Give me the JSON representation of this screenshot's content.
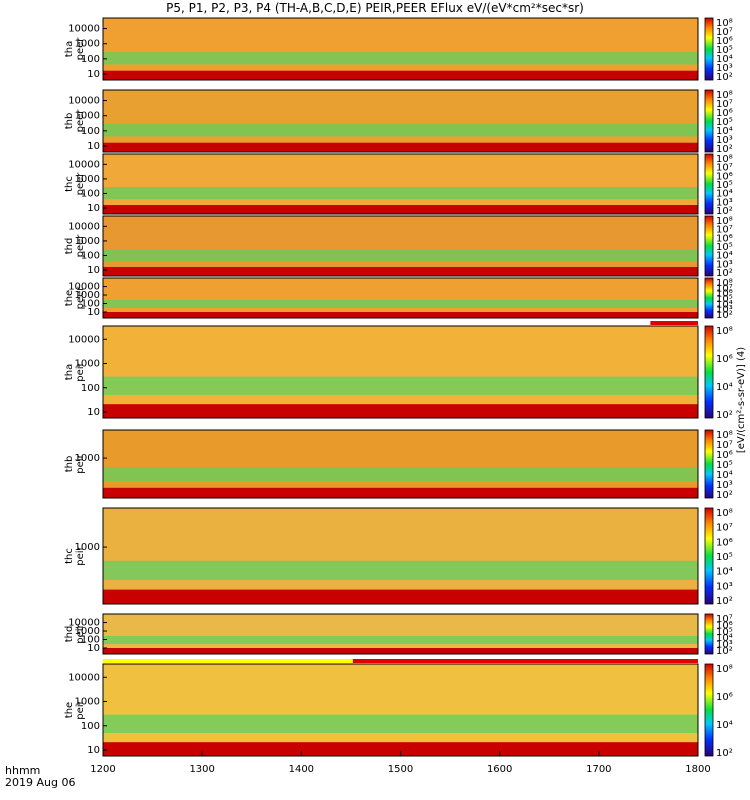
{
  "title": "P5, P1, P2, P3, P4 (TH-A,B,C,D,E) PEIR,PEER EFlux eV/(eV*cm²*sec*sr)",
  "x_axis": {
    "ticks": [
      "1200",
      "1300",
      "1400",
      "1500",
      "1600",
      "1700",
      "1800"
    ]
  },
  "footer": {
    "line1": "hhmm",
    "line2": "2019 Aug 06"
  },
  "colorbar": {
    "label": "[eV/(cm²-s-sr-eV)] (4)",
    "ticks": [
      "10⁸",
      "10⁷",
      "10⁶",
      "10⁵",
      "10⁴",
      "10³",
      "10²"
    ]
  },
  "chart_data": [
    {
      "type": "heatmap",
      "panel": "tha-peer",
      "ylabel": "tha\npeer",
      "yscale": "log",
      "yticks": [
        "10000",
        "1000",
        "100",
        "10"
      ],
      "xticks": [
        "1200",
        "1300",
        "1400",
        "1500",
        "1600",
        "1700",
        "1800"
      ],
      "ticks_lg": [
        4,
        3,
        2,
        1
      ],
      "cbticks": [
        "10⁸",
        "10⁷",
        "10⁶",
        "10⁵",
        "10⁴",
        "10³",
        "10²"
      ],
      "bar": []
    },
    {
      "type": "heatmap",
      "panel": "thb-peer",
      "ylabel": "thb\npeer",
      "yscale": "log",
      "yticks": [
        "10000",
        "1000",
        "100",
        "10"
      ],
      "xticks": [
        "1200",
        "1300",
        "1400",
        "1500",
        "1600",
        "1700",
        "1800"
      ],
      "ticks_lg": [
        4,
        3,
        2,
        1
      ],
      "cbticks": [
        "10⁸",
        "10⁷",
        "10⁶",
        "10⁵",
        "10⁴",
        "10³",
        "10²"
      ],
      "bar": []
    },
    {
      "type": "heatmap",
      "panel": "thc-peer",
      "ylabel": "thc\npeer",
      "yscale": "log",
      "yticks": [
        "10000",
        "1000",
        "100",
        "10"
      ],
      "xticks": [
        "1200",
        "1300",
        "1400",
        "1500",
        "1600",
        "1700",
        "1800"
      ],
      "ticks_lg": [
        4,
        3,
        2,
        1
      ],
      "cbticks": [
        "10⁸",
        "10⁷",
        "10⁶",
        "10⁵",
        "10⁴",
        "10³",
        "10²"
      ],
      "bar": []
    },
    {
      "type": "heatmap",
      "panel": "thd-peer",
      "ylabel": "thd\npeer",
      "yscale": "log",
      "yticks": [
        "10000",
        "1000",
        "100",
        "10"
      ],
      "xticks": [
        "1200",
        "1300",
        "1400",
        "1500",
        "1600",
        "1700",
        "1800"
      ],
      "ticks_lg": [
        4,
        3,
        2,
        1
      ],
      "cbticks": [
        "10⁸",
        "10⁷",
        "10⁶",
        "10⁵",
        "10⁴",
        "10³",
        "10²"
      ],
      "bar": []
    },
    {
      "type": "heatmap",
      "panel": "the-peer",
      "ylabel": "the\npeer",
      "yscale": "log",
      "yticks": [
        "10000",
        "1000",
        "100",
        "10"
      ],
      "xticks": [
        "1200",
        "1300",
        "1400",
        "1500",
        "1600",
        "1700",
        "1800"
      ],
      "ticks_lg": [
        4,
        3,
        2,
        1
      ],
      "cbticks": [
        "10⁸",
        "10⁷",
        "10⁶",
        "10⁵",
        "10⁴",
        "10³",
        "10²"
      ],
      "bar": [
        {
          "from": 1752,
          "to": 1800,
          "color": "#e00000"
        }
      ]
    },
    {
      "type": "heatmap",
      "panel": "tha-peir",
      "ylabel": "tha\npeir",
      "yscale": "log",
      "yticks": [
        "10000",
        "1000",
        "100",
        "10"
      ],
      "xticks": [
        "1200",
        "1300",
        "1400",
        "1500",
        "1600",
        "1700",
        "1800"
      ],
      "ticks_lg": [
        4,
        3,
        2,
        1
      ],
      "cbticks": [
        "10⁸",
        "10⁶",
        "10⁴",
        "10²"
      ],
      "bar": []
    },
    {
      "type": "heatmap",
      "panel": "thb-peir",
      "ylabel": "thb\npeir",
      "yscale": "log",
      "yticks": [
        "1000"
      ],
      "xticks": [
        "1200",
        "1300",
        "1400",
        "1500",
        "1600",
        "1700",
        "1800"
      ],
      "ticks_lg": [
        3
      ],
      "cbticks": [
        "10⁸",
        "10⁷",
        "10⁶",
        "10⁵",
        "10⁴",
        "10³",
        "10²"
      ],
      "bar": []
    },
    {
      "type": "heatmap",
      "panel": "thc-peir",
      "ylabel": "thc\npeir",
      "yscale": "log",
      "yticks": [
        "1000"
      ],
      "xticks": [
        "1200",
        "1300",
        "1400",
        "1500",
        "1600",
        "1700",
        "1800"
      ],
      "ticks_lg": [
        3
      ],
      "cbticks": [
        "10⁸",
        "10⁷",
        "10⁶",
        "10⁵",
        "10⁴",
        "10³",
        "10²"
      ],
      "bar": []
    },
    {
      "type": "heatmap",
      "panel": "thd-peir",
      "ylabel": "thd\npeir",
      "yscale": "log",
      "yticks": [
        "10000",
        "1000",
        "100",
        "10"
      ],
      "xticks": [
        "1200",
        "1300",
        "1400",
        "1500",
        "1600",
        "1700",
        "1800"
      ],
      "ticks_lg": [
        4,
        3,
        2,
        1
      ],
      "cbticks": [
        "10⁷",
        "10⁶",
        "10⁵",
        "10⁴",
        "10³",
        "10²"
      ],
      "bar": []
    },
    {
      "type": "heatmap",
      "panel": "the-peir",
      "ylabel": "the\npeir",
      "yscale": "log",
      "yticks": [
        "10000",
        "1000",
        "100",
        "10"
      ],
      "xticks": [
        "1200",
        "1300",
        "1400",
        "1500",
        "1600",
        "1700",
        "1800"
      ],
      "ticks_lg": [
        4,
        3,
        2,
        1
      ],
      "cbticks": [
        "10⁸",
        "10⁶",
        "10⁴",
        "10²"
      ],
      "bar": [
        {
          "from": 1200,
          "to": 1452,
          "color": "#ffff00"
        },
        {
          "from": 1452,
          "to": 1800,
          "color": "#e00000"
        }
      ]
    }
  ]
}
